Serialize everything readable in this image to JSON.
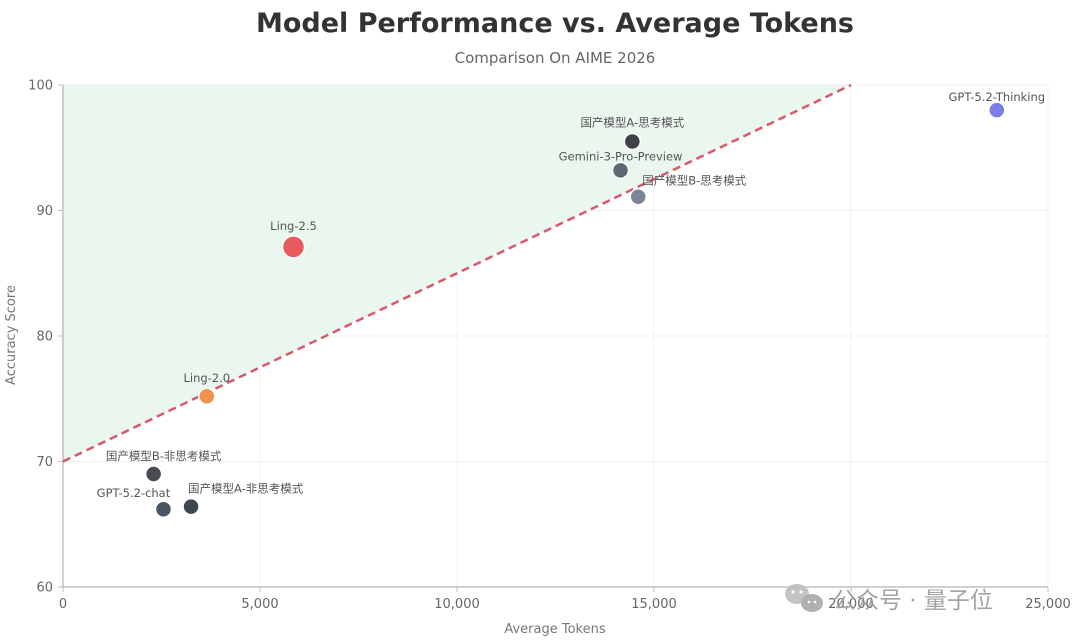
{
  "chart_data": {
    "type": "scatter",
    "title": "Model Performance vs. Average Tokens",
    "subtitle": "Comparison On AIME 2026",
    "xlabel": "Average Tokens",
    "ylabel": "Accuracy Score",
    "xlim": [
      0,
      25000
    ],
    "ylim": [
      60,
      100
    ],
    "xticks": [
      "0",
      "5,000",
      "10,000",
      "15,000",
      "20,000",
      "25,000"
    ],
    "yticks": [
      "60",
      "70",
      "80",
      "90",
      "100"
    ],
    "grid": true,
    "reference_line": {
      "style": "dashed",
      "color": "#d9596b",
      "from": [
        0,
        70
      ],
      "to": [
        20000,
        100
      ]
    },
    "shaded_region": {
      "color": "#eaf7ef",
      "description": "area above reference line"
    },
    "points": [
      {
        "label": "GPT-5.2-Thinking",
        "x": 23700,
        "y": 98.0,
        "color": "#7b7ee6",
        "size": "medium"
      },
      {
        "label": "国产模型A-思考模式",
        "x": 14450,
        "y": 95.5,
        "color": "#3c4246",
        "size": "medium"
      },
      {
        "label": "Gemini-3-Pro-Preview",
        "x": 14150,
        "y": 93.2,
        "color": "#5f6874",
        "size": "medium"
      },
      {
        "label": "国产模型B-思考模式",
        "x": 14600,
        "y": 91.1,
        "color": "#7b8595",
        "size": "medium"
      },
      {
        "label": "Ling-2.5",
        "x": 5850,
        "y": 87.1,
        "color": "#e6595d",
        "size": "large"
      },
      {
        "label": "Ling-2.0",
        "x": 3650,
        "y": 75.2,
        "color": "#f0914c",
        "size": "medium"
      },
      {
        "label": "国产模型B-非思考模式",
        "x": 2300,
        "y": 69.0,
        "color": "#474c52",
        "size": "medium"
      },
      {
        "label": "GPT-5.2-chat",
        "x": 2550,
        "y": 66.2,
        "color": "#4b5563",
        "size": "medium"
      },
      {
        "label": "国产模型A-非思考模式",
        "x": 3250,
        "y": 66.4,
        "color": "#3f4650",
        "size": "medium"
      }
    ]
  },
  "watermark": {
    "text": "公众号 · 量子位",
    "icon": "wechat-icon"
  }
}
